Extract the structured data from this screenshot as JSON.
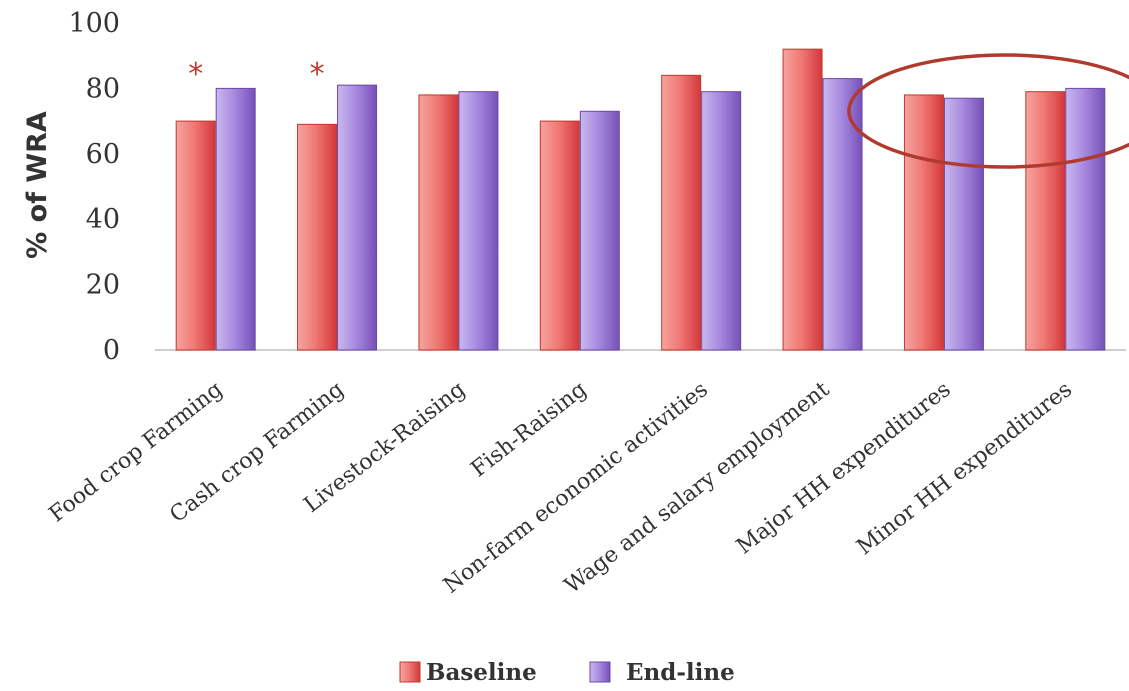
{
  "chart_data": {
    "type": "bar",
    "title": "",
    "xlabel": "",
    "ylabel": "% of WRA",
    "ylim": [
      0,
      100
    ],
    "yticks": [
      "0",
      "20",
      "40",
      "60",
      "80",
      "100"
    ],
    "categories": [
      "Food crop Farming",
      "Cash crop Farming",
      "Livestock-Raising",
      "Fish-Raising",
      "Non-farm economic activities",
      "Wage and salary employment",
      "Major HH expenditures",
      "Minor HH expenditures"
    ],
    "series": [
      {
        "name": "Baseline",
        "values": [
          70,
          69,
          78,
          70,
          84,
          92,
          78,
          79
        ],
        "color": "#e0474c"
      },
      {
        "name": "End-line",
        "values": [
          80,
          81,
          79,
          73,
          79,
          83,
          77,
          80
        ],
        "color": "#8e6ac8"
      }
    ],
    "significance_markers": [
      {
        "category_index": 0,
        "symbol": "*"
      },
      {
        "category_index": 1,
        "symbol": "*"
      }
    ],
    "highlight": {
      "shape": "ellipse",
      "categories": [
        6,
        7
      ],
      "color": "#b03a2e"
    },
    "grid": false,
    "legend": "bottom"
  }
}
